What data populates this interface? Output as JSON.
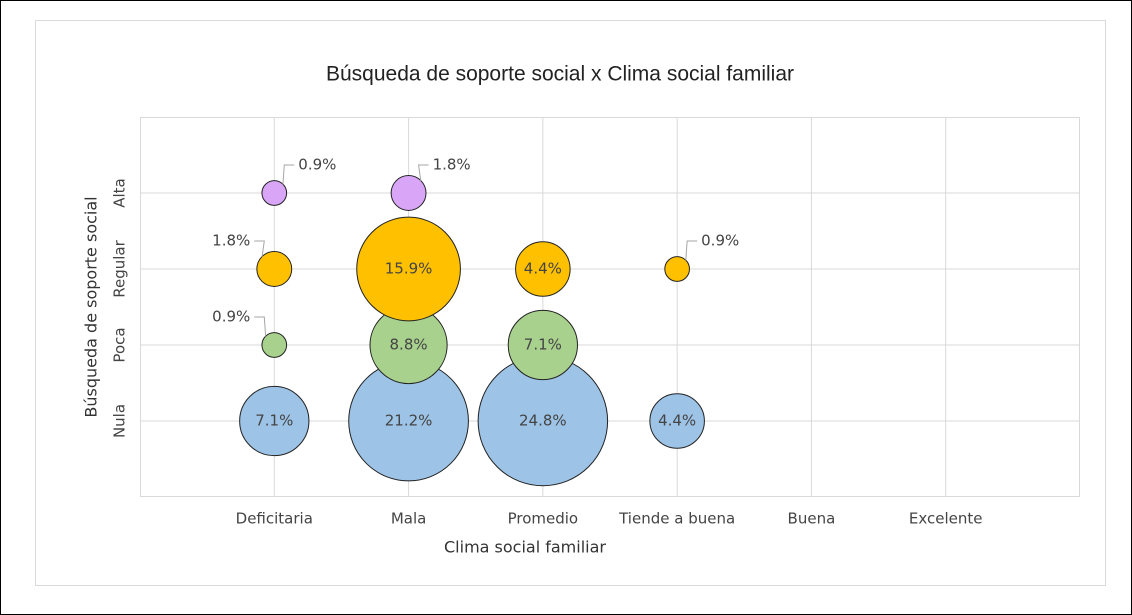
{
  "chart_data": {
    "type": "bubble",
    "title": "Búsqueda de soporte social x Clima social familiar",
    "x_label": "Clima social familiar",
    "y_label": "Búsqueda de soporte social",
    "categories": [
      "Deficitaria",
      "Mala",
      "Promedio",
      "Tiende a buena",
      "Buena",
      "Excelente"
    ],
    "y_categories": [
      "Nula",
      "Poca",
      "Regular",
      "Alta"
    ],
    "series": [
      {
        "color": "#9dc3e6",
        "values": [
          7.1,
          21.2,
          24.8,
          4.4,
          null,
          null
        ],
        "value_labels": [
          "7.1%",
          "21.2%",
          "24.8%",
          "4.4%",
          null,
          null
        ]
      },
      {
        "color": "#a9d18e",
        "values": [
          0.9,
          8.8,
          7.1,
          null,
          null,
          null
        ],
        "value_labels": [
          "0.9%",
          "8.8%",
          "7.1%",
          null,
          null,
          null
        ]
      },
      {
        "color": "#ffc000",
        "values": [
          1.8,
          15.9,
          4.4,
          0.9,
          null,
          null
        ],
        "value_labels": [
          "1.8%",
          "15.9%",
          "4.4%",
          "0.9%",
          null,
          null
        ]
      },
      {
        "color": "#d9a6f7",
        "values": [
          0.9,
          1.8,
          null,
          null,
          null,
          null
        ],
        "value_labels": [
          "0.9%",
          "1.8%",
          null,
          null,
          null,
          null
        ]
      }
    ],
    "grid": true
  }
}
